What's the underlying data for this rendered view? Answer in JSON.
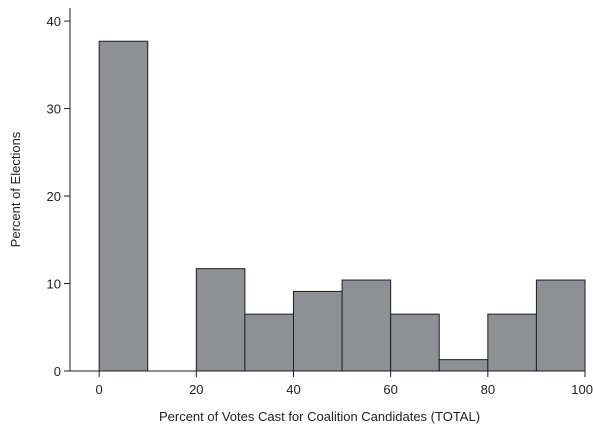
{
  "chart_data": {
    "type": "bar",
    "subtype": "histogram",
    "title": "",
    "xlabel": "Percent of Votes Cast for Coalition Candidates (TOTAL)",
    "ylabel": "Percent of Elections",
    "bins": [
      {
        "start": 0,
        "end": 10,
        "value": 37.7
      },
      {
        "start": 10,
        "end": 20,
        "value": 0
      },
      {
        "start": 20,
        "end": 30,
        "value": 11.7
      },
      {
        "start": 30,
        "end": 40,
        "value": 6.5
      },
      {
        "start": 40,
        "end": 50,
        "value": 9.1
      },
      {
        "start": 50,
        "end": 60,
        "value": 10.4
      },
      {
        "start": 60,
        "end": 70,
        "value": 6.5
      },
      {
        "start": 70,
        "end": 80,
        "value": 1.3
      },
      {
        "start": 80,
        "end": 90,
        "value": 6.5
      },
      {
        "start": 90,
        "end": 100,
        "value": 10.4
      }
    ],
    "xlim": [
      -6,
      100
    ],
    "ylim": [
      0,
      41.5
    ],
    "xticks": [
      0,
      20,
      40,
      60,
      80,
      100
    ],
    "xtick_labels": [
      "0",
      "20",
      "40",
      "60",
      "80",
      "100"
    ],
    "yticks": [
      0,
      10,
      20,
      30,
      40
    ],
    "ytick_labels": [
      "0",
      "10",
      "20",
      "30",
      "40"
    ],
    "grid": false,
    "legend": "none",
    "colors": {
      "bar_fill": "#8f9094",
      "bar_stroke": "#1e1e1e",
      "axis": "#1e1e1e",
      "background": "#ffffff"
    }
  }
}
